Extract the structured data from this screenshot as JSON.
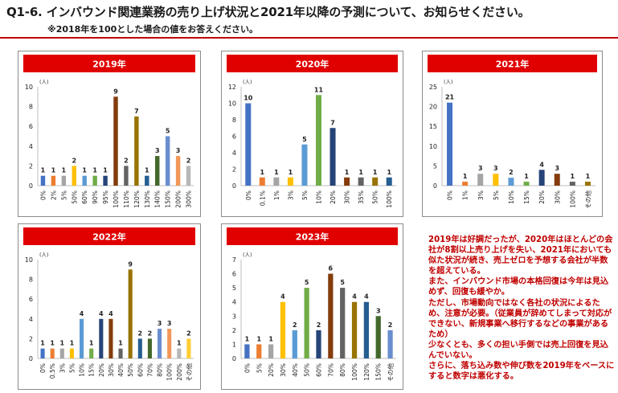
{
  "header": {
    "title": "Q1-6. インバウンド関連業務の売り上げ状況と2021年以降の予測について、お知らせください。",
    "subtitle": "※2018年を100とした場合の値をお答えください。"
  },
  "note": {
    "lines": [
      "2019年は好調だったが、2020年はほとんどの会社が8割以上売り上げを失い、2021年においても似た状況が続き、売上ゼロを予想する会社が半数を超えている。",
      "また、インバウンド市場の本格回復は今年は見込めず、回復も緩やか。",
      "ただし、市場動向ではなく各社の状況によるため、注意が必要。（従業員が辞めてしまって対応ができない、新規事業へ移行するなどの事業があるため）",
      "少なくとも、多くの担い手側では売上回復を見込んでいない。",
      "さらに、落ち込み数や伸び数を2019年をベースにすると数字は悪化する。"
    ]
  },
  "chart_data": [
    {
      "type": "bar",
      "title": "2019年",
      "unit": "(人)",
      "ylim": [
        0,
        10
      ],
      "yticks": [
        0,
        2,
        4,
        6,
        8,
        10
      ],
      "categories": [
        "0%",
        "2%",
        "5%",
        "50%",
        "60%",
        "90%",
        "95%",
        "100%",
        "110%",
        "120%",
        "130%",
        "140%",
        "150%",
        "200%",
        "300%"
      ],
      "values": [
        1,
        1,
        1,
        2,
        1,
        1,
        1,
        9,
        2,
        7,
        1,
        3,
        5,
        3,
        2
      ],
      "colors": [
        "#4472c4",
        "#ed7d31",
        "#a5a5a5",
        "#ffc000",
        "#5b9bd5",
        "#70ad47",
        "#264478",
        "#843c0c",
        "#636363",
        "#997300",
        "#255e91",
        "#43682b",
        "#698ed0",
        "#f1975a",
        "#b7b7b7"
      ]
    },
    {
      "type": "bar",
      "title": "2020年",
      "unit": "(人)",
      "ylim": [
        0,
        12
      ],
      "yticks": [
        0,
        2,
        4,
        6,
        8,
        10,
        12
      ],
      "categories": [
        "0%",
        "0.1%",
        "1%",
        "3%",
        "5%",
        "10%",
        "20%",
        "30%",
        "35%",
        "50%",
        "100%"
      ],
      "values": [
        10,
        1,
        1,
        1,
        5,
        11,
        7,
        1,
        1,
        1,
        1
      ],
      "colors": [
        "#4472c4",
        "#ed7d31",
        "#a5a5a5",
        "#ffc000",
        "#5b9bd5",
        "#70ad47",
        "#264478",
        "#843c0c",
        "#636363",
        "#997300",
        "#255e91"
      ]
    },
    {
      "type": "bar",
      "title": "2021年",
      "unit": "(人)",
      "ylim": [
        0,
        25
      ],
      "yticks": [
        0,
        5,
        10,
        15,
        20,
        25
      ],
      "categories": [
        "0%",
        "1%",
        "3%",
        "5%",
        "10%",
        "15%",
        "20%",
        "30%",
        "100%",
        "その他"
      ],
      "values": [
        21,
        1,
        3,
        3,
        2,
        1,
        4,
        3,
        1,
        1
      ],
      "colors": [
        "#4472c4",
        "#ed7d31",
        "#a5a5a5",
        "#ffc000",
        "#5b9bd5",
        "#70ad47",
        "#264478",
        "#843c0c",
        "#636363",
        "#997300"
      ]
    },
    {
      "type": "bar",
      "title": "2022年",
      "unit": "(人)",
      "ylim": [
        0,
        10
      ],
      "yticks": [
        0,
        2,
        4,
        6,
        8,
        10
      ],
      "categories": [
        "0%",
        "0.5%",
        "3%",
        "5%",
        "10%",
        "15%",
        "20%",
        "30%",
        "40%",
        "50%",
        "60%",
        "70%",
        "80%",
        "100%",
        "200%",
        "その他"
      ],
      "values": [
        1,
        1,
        1,
        1,
        4,
        1,
        4,
        4,
        1,
        9,
        2,
        2,
        3,
        3,
        1,
        2
      ],
      "colors": [
        "#4472c4",
        "#ed7d31",
        "#a5a5a5",
        "#ffc000",
        "#5b9bd5",
        "#70ad47",
        "#264478",
        "#843c0c",
        "#636363",
        "#997300",
        "#255e91",
        "#43682b",
        "#698ed0",
        "#f1975a",
        "#b7b7b7",
        "#ffcd33"
      ]
    },
    {
      "type": "bar",
      "title": "2023年",
      "unit": "(人)",
      "ylim": [
        0,
        7
      ],
      "yticks": [
        0,
        1,
        2,
        3,
        4,
        5,
        6,
        7
      ],
      "categories": [
        "0%",
        "5%",
        "20%",
        "30%",
        "40%",
        "50%",
        "60%",
        "70%",
        "80%",
        "100%",
        "120%",
        "150%",
        "その他"
      ],
      "values": [
        1,
        1,
        1,
        4,
        2,
        5,
        2,
        6,
        5,
        4,
        4,
        3,
        2
      ],
      "colors": [
        "#4472c4",
        "#ed7d31",
        "#a5a5a5",
        "#ffc000",
        "#5b9bd5",
        "#70ad47",
        "#264478",
        "#843c0c",
        "#636363",
        "#997300",
        "#255e91",
        "#43682b",
        "#698ed0"
      ]
    }
  ]
}
